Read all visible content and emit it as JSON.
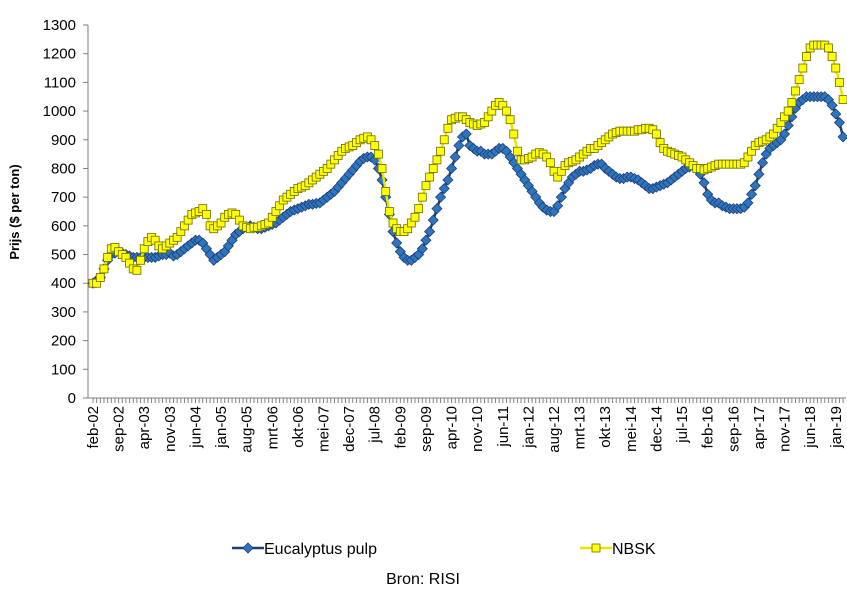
{
  "chart_data": {
    "type": "line",
    "y_label": "Prijs ($ per ton)",
    "source": "Bron: RISI",
    "categories": [
      "feb-02",
      null,
      null,
      null,
      null,
      null,
      null,
      "sep-02",
      null,
      null,
      null,
      null,
      null,
      null,
      "apr-03",
      null,
      null,
      null,
      null,
      null,
      null,
      "nov-03",
      null,
      null,
      null,
      null,
      null,
      null,
      "jun-04",
      null,
      null,
      null,
      null,
      null,
      null,
      "jan-05",
      null,
      null,
      null,
      null,
      null,
      null,
      "aug-05",
      null,
      null,
      null,
      null,
      null,
      null,
      "mrt-06",
      null,
      null,
      null,
      null,
      null,
      null,
      "okt-06",
      null,
      null,
      null,
      null,
      null,
      null,
      "mei-07",
      null,
      null,
      null,
      null,
      null,
      null,
      "dec-07",
      null,
      null,
      null,
      null,
      null,
      null,
      "jul-08",
      null,
      null,
      null,
      null,
      null,
      null,
      "feb-09",
      null,
      null,
      null,
      null,
      null,
      null,
      "sep-09",
      null,
      null,
      null,
      null,
      null,
      null,
      "apr-10",
      null,
      null,
      null,
      null,
      null,
      null,
      "nov-10",
      null,
      null,
      null,
      null,
      null,
      null,
      "jun-11",
      null,
      null,
      null,
      null,
      null,
      null,
      "jan-12",
      null,
      null,
      null,
      null,
      null,
      null,
      "aug-12",
      null,
      null,
      null,
      null,
      null,
      null,
      "mrt-13",
      null,
      null,
      null,
      null,
      null,
      null,
      "okt-13",
      null,
      null,
      null,
      null,
      null,
      null,
      "mei-14",
      null,
      null,
      null,
      null,
      null,
      null,
      "dec-14",
      null,
      null,
      null,
      null,
      null,
      null,
      "jul-15",
      null,
      null,
      null,
      null,
      null,
      null,
      "feb-16",
      null,
      null,
      null,
      null,
      null,
      null,
      "sep-16",
      null,
      null,
      null,
      null,
      null,
      null,
      "apr-17",
      null,
      null,
      null,
      null,
      null,
      null,
      "nov-17",
      null,
      null,
      null,
      null,
      null,
      null,
      "jun-18",
      null,
      null,
      null,
      null,
      null,
      null,
      "jan-19",
      null,
      null
    ],
    "series": [
      {
        "name": "Eucalyptus pulp",
        "color": "#1f3f73",
        "marker": "diamond",
        "marker_color": "#2e75c0",
        "values": [
          400,
          410,
          420,
          450,
          480,
          500,
          505,
          510,
          505,
          500,
          495,
          490,
          490,
          490,
          490,
          490,
          490,
          490,
          495,
          500,
          500,
          505,
          495,
          500,
          510,
          520,
          530,
          540,
          550,
          550,
          540,
          520,
          500,
          480,
          490,
          500,
          510,
          530,
          550,
          570,
          580,
          590,
          595,
          600,
          595,
          590,
          590,
          595,
          600,
          605,
          610,
          620,
          630,
          640,
          650,
          655,
          660,
          665,
          670,
          675,
          675,
          678,
          680,
          690,
          700,
          710,
          720,
          735,
          750,
          765,
          780,
          795,
          810,
          825,
          835,
          840,
          840,
          830,
          800,
          760,
          700,
          640,
          580,
          540,
          510,
          490,
          480,
          480,
          490,
          500,
          520,
          550,
          580,
          620,
          660,
          700,
          730,
          760,
          800,
          840,
          880,
          910,
          920,
          880,
          870,
          860,
          860,
          850,
          850,
          850,
          860,
          870,
          870,
          860,
          840,
          820,
          800,
          780,
          760,
          740,
          720,
          700,
          680,
          665,
          655,
          650,
          650,
          670,
          700,
          730,
          750,
          770,
          780,
          790,
          790,
          795,
          800,
          810,
          815,
          815,
          800,
          790,
          780,
          770,
          765,
          765,
          770,
          770,
          765,
          760,
          750,
          740,
          730,
          730,
          735,
          740,
          745,
          750,
          760,
          770,
          780,
          790,
          800,
          805,
          810,
          800,
          780,
          750,
          710,
          690,
          680,
          680,
          670,
          665,
          660,
          660,
          660,
          660,
          665,
          680,
          710,
          740,
          780,
          820,
          850,
          870,
          880,
          890,
          900,
          920,
          950,
          980,
          1010,
          1030,
          1040,
          1050,
          1050,
          1050,
          1050,
          1050,
          1050,
          1040,
          1020,
          990,
          960,
          910
        ]
      },
      {
        "name": "NBSK",
        "color": "#e6e600",
        "marker": "square",
        "marker_color": "#ffff00",
        "values": [
          400,
          400,
          420,
          450,
          490,
          520,
          525,
          510,
          500,
          490,
          470,
          450,
          445,
          480,
          520,
          545,
          560,
          550,
          530,
          520,
          530,
          540,
          550,
          560,
          580,
          600,
          620,
          640,
          645,
          650,
          660,
          640,
          600,
          590,
          600,
          610,
          630,
          640,
          645,
          640,
          620,
          600,
          595,
          590,
          595,
          595,
          600,
          605,
          610,
          630,
          650,
          670,
          690,
          700,
          710,
          720,
          730,
          735,
          740,
          750,
          760,
          770,
          780,
          790,
          800,
          815,
          830,
          845,
          860,
          870,
          875,
          880,
          890,
          900,
          905,
          910,
          900,
          880,
          850,
          800,
          720,
          650,
          610,
          590,
          580,
          580,
          590,
          610,
          630,
          660,
          700,
          740,
          770,
          800,
          830,
          860,
          900,
          940,
          970,
          975,
          980,
          980,
          970,
          960,
          955,
          950,
          955,
          960,
          980,
          1000,
          1020,
          1030,
          1020,
          1000,
          970,
          920,
          860,
          830,
          830,
          835,
          840,
          850,
          855,
          850,
          840,
          820,
          790,
          770,
          790,
          810,
          820,
          825,
          830,
          840,
          850,
          860,
          870,
          870,
          880,
          890,
          900,
          910,
          920,
          925,
          930,
          930,
          930,
          930,
          930,
          935,
          935,
          940,
          940,
          935,
          920,
          890,
          870,
          860,
          855,
          850,
          845,
          840,
          830,
          820,
          810,
          800,
          800,
          795,
          800,
          805,
          810,
          815,
          815,
          815,
          815,
          815,
          815,
          815,
          820,
          840,
          860,
          880,
          890,
          895,
          900,
          910,
          920,
          940,
          960,
          980,
          1000,
          1030,
          1070,
          1110,
          1150,
          1190,
          1220,
          1230,
          1230,
          1230,
          1230,
          1220,
          1190,
          1150,
          1100,
          1040
        ]
      }
    ],
    "ylim": [
      0,
      1300
    ],
    "yticks": [
      0,
      100,
      200,
      300,
      400,
      500,
      600,
      700,
      800,
      900,
      1000,
      1100,
      1200,
      1300
    ],
    "grid": false
  }
}
